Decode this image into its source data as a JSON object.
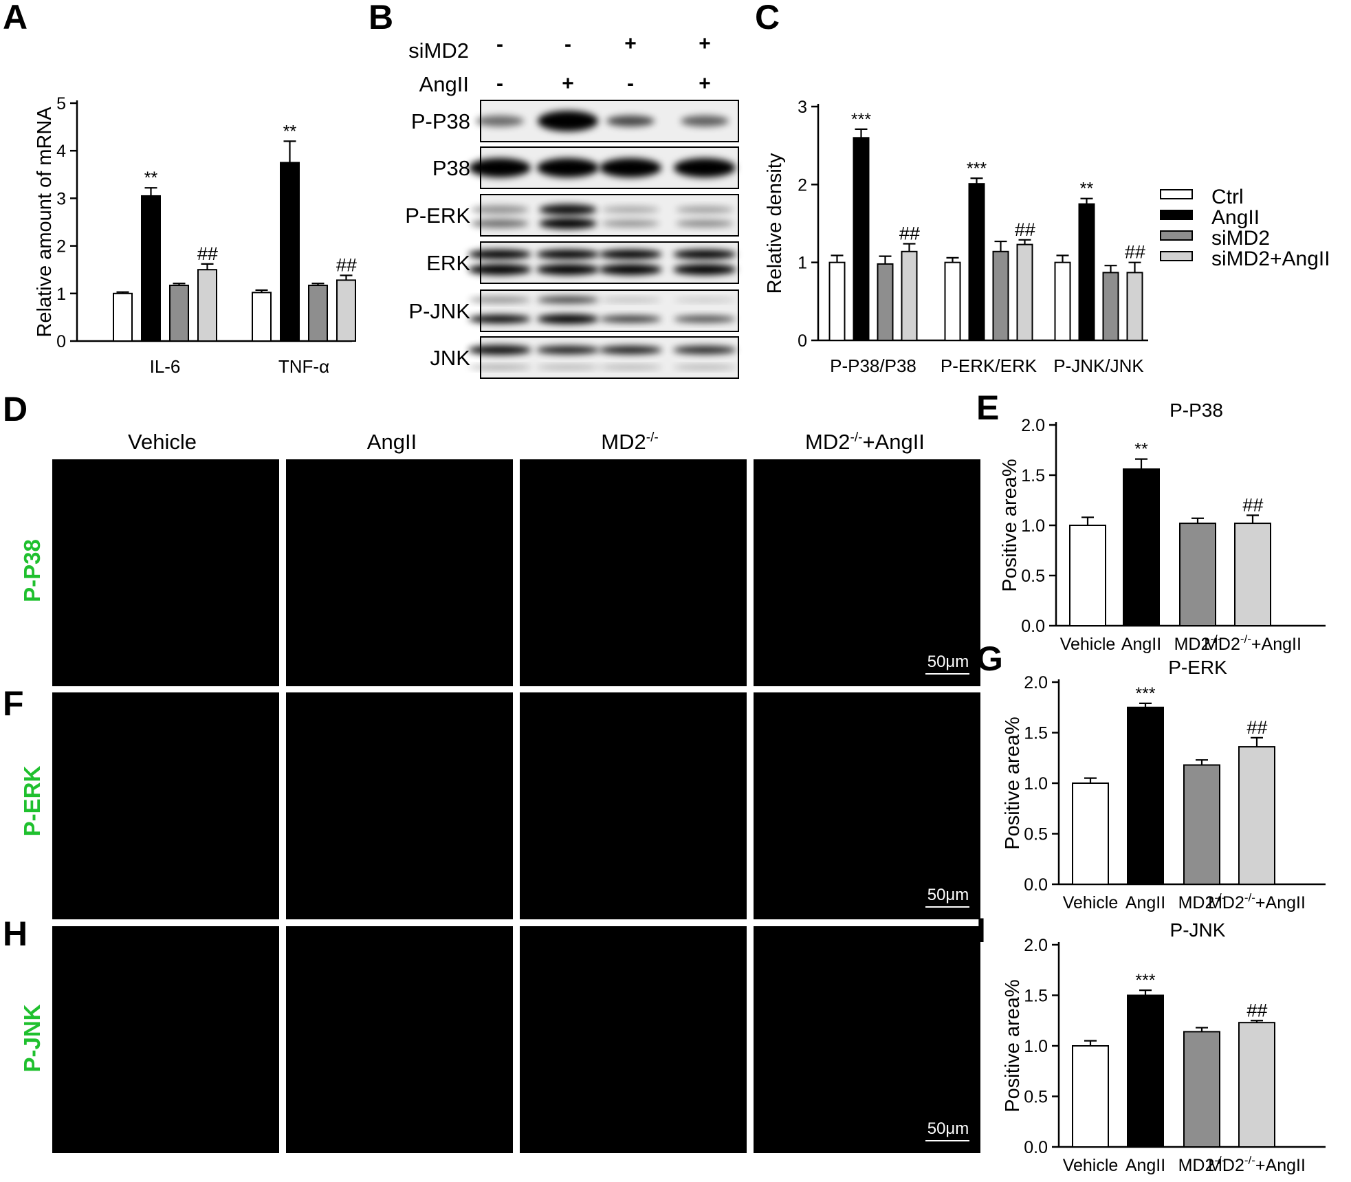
{
  "colors": {
    "ctrl": "#ffffff",
    "angii": "#000000",
    "simd2": "#8e8e8e",
    "simd2_angii": "#d2d2d2",
    "stroke": "#000000",
    "micro_bg": "#000000",
    "micro_green": "#1fbf2d",
    "micro_blue": "#1f3aff",
    "row_label": "#1fc02e"
  },
  "panels": {
    "A": "A",
    "B": "B",
    "C": "C",
    "D": "D",
    "E": "E",
    "F": "F",
    "G": "G",
    "H": "H",
    "I": "I"
  },
  "legend": {
    "items": [
      "Ctrl",
      "AngII",
      "siMD2",
      "siMD2+AngII"
    ],
    "placement": "right"
  },
  "blot": {
    "row_labels": [
      "siMD2",
      "AngII"
    ],
    "simd2": [
      "-",
      "-",
      "+",
      "+"
    ],
    "angii": [
      "-",
      "+",
      "-",
      "+"
    ],
    "bands": [
      "P-P38",
      "P38",
      "P-ERK",
      "ERK",
      "P-JNK",
      "JNK"
    ]
  },
  "micro": {
    "columns": [
      "Vehicle",
      "AngII",
      "MD2",
      "MD2",
      "+AngII"
    ],
    "column_sups": [
      "-/-",
      "-/-"
    ],
    "rows": [
      "P-P38",
      "P-ERK",
      "P-JNK"
    ],
    "scale_bar": "50μm"
  },
  "chart_data": [
    {
      "panel": "A",
      "type": "bar",
      "ylabel": "Relative amount of mRNA",
      "xlabel": "",
      "ylim": [
        0,
        5
      ],
      "yticks": [
        0,
        1,
        2,
        3,
        4,
        5
      ],
      "categories": [
        "IL-6",
        "TNF-α"
      ],
      "series": [
        {
          "name": "Ctrl",
          "values": [
            1.0,
            1.02
          ],
          "errors": [
            0.03,
            0.05
          ]
        },
        {
          "name": "AngII",
          "values": [
            3.05,
            3.75
          ],
          "errors": [
            0.17,
            0.45
          ]
        },
        {
          "name": "siMD2",
          "values": [
            1.17,
            1.17
          ],
          "errors": [
            0.04,
            0.04
          ]
        },
        {
          "name": "siMD2+AngII",
          "values": [
            1.5,
            1.28
          ],
          "errors": [
            0.12,
            0.1
          ]
        }
      ],
      "annotations": [
        {
          "category": 0,
          "series": 1,
          "text": "**"
        },
        {
          "category": 0,
          "series": 3,
          "text": "##"
        },
        {
          "category": 1,
          "series": 1,
          "text": "**"
        },
        {
          "category": 1,
          "series": 3,
          "text": "##"
        }
      ]
    },
    {
      "panel": "C",
      "type": "bar",
      "ylabel": "Relative density",
      "xlabel": "",
      "ylim": [
        0,
        3
      ],
      "yticks": [
        0,
        1,
        2,
        3
      ],
      "categories": [
        "P-P38/P38",
        "P-ERK/ERK",
        "P-JNK/JNK"
      ],
      "series": [
        {
          "name": "Ctrl",
          "values": [
            1.0,
            1.0,
            1.0
          ],
          "errors": [
            0.09,
            0.06,
            0.09
          ]
        },
        {
          "name": "AngII",
          "values": [
            2.6,
            2.01,
            1.75
          ],
          "errors": [
            0.11,
            0.07,
            0.07
          ]
        },
        {
          "name": "siMD2",
          "values": [
            0.98,
            1.14,
            0.87
          ],
          "errors": [
            0.1,
            0.13,
            0.09
          ]
        },
        {
          "name": "siMD2+AngII",
          "values": [
            1.14,
            1.23,
            0.87
          ],
          "errors": [
            0.1,
            0.06,
            0.13
          ]
        }
      ],
      "annotations": [
        {
          "category": 0,
          "series": 1,
          "text": "***"
        },
        {
          "category": 0,
          "series": 3,
          "text": "##"
        },
        {
          "category": 1,
          "series": 1,
          "text": "***"
        },
        {
          "category": 1,
          "series": 3,
          "text": "##"
        },
        {
          "category": 2,
          "series": 1,
          "text": "**"
        },
        {
          "category": 2,
          "series": 3,
          "text": "##"
        }
      ]
    },
    {
      "panel": "E",
      "type": "bar",
      "title": "P-P38",
      "ylabel": "Positive area%",
      "xlabel": "",
      "ylim": [
        0,
        2.0
      ],
      "yticks": [
        "0.0",
        "0.5",
        "1.0",
        "1.5",
        "2.0"
      ],
      "categories": [
        "Vehicle",
        "AngII",
        "MD2",
        "MD2"
      ],
      "category_sups": [
        "",
        "",
        "-/-",
        "-/-"
      ],
      "category_suffix": [
        "",
        "",
        "",
        "+AngII"
      ],
      "values": [
        1.0,
        1.56,
        1.02,
        1.02
      ],
      "errors": [
        0.08,
        0.1,
        0.05,
        0.08
      ],
      "annotations": [
        {
          "index": 1,
          "text": "**"
        },
        {
          "index": 3,
          "text": "##"
        }
      ]
    },
    {
      "panel": "G",
      "type": "bar",
      "title": "P-ERK",
      "ylabel": "Positive area%",
      "xlabel": "",
      "ylim": [
        0,
        2.0
      ],
      "yticks": [
        "0.0",
        "0.5",
        "1.0",
        "1.5",
        "2.0"
      ],
      "categories": [
        "Vehicle",
        "AngII",
        "MD2",
        "MD2"
      ],
      "category_sups": [
        "",
        "",
        "-/-",
        "-/-"
      ],
      "category_suffix": [
        "",
        "",
        "",
        "+AngII"
      ],
      "values": [
        1.0,
        1.75,
        1.18,
        1.36
      ],
      "errors": [
        0.05,
        0.04,
        0.05,
        0.09
      ],
      "annotations": [
        {
          "index": 1,
          "text": "***"
        },
        {
          "index": 3,
          "text": "##"
        }
      ]
    },
    {
      "panel": "I",
      "type": "bar",
      "title": "P-JNK",
      "ylabel": "Positive area%",
      "xlabel": "",
      "ylim": [
        0,
        2.0
      ],
      "yticks": [
        "0.0",
        "0.5",
        "1.0",
        "1.5",
        "2.0"
      ],
      "categories": [
        "Vehicle",
        "AngII",
        "MD2",
        "MD2"
      ],
      "category_sups": [
        "",
        "",
        "-/-",
        "-/-"
      ],
      "category_suffix": [
        "",
        "",
        "",
        "+AngII"
      ],
      "values": [
        1.0,
        1.5,
        1.14,
        1.23
      ],
      "errors": [
        0.05,
        0.05,
        0.04,
        0.02
      ],
      "annotations": [
        {
          "index": 1,
          "text": "***"
        },
        {
          "index": 3,
          "text": "##"
        }
      ]
    }
  ]
}
